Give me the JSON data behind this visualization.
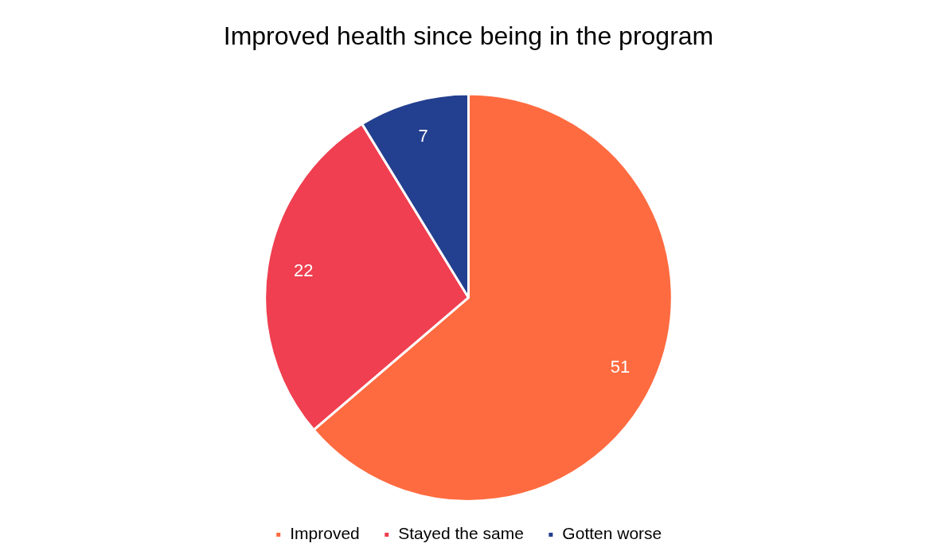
{
  "chart_data": {
    "type": "pie",
    "title": "Improved health since being in the program",
    "categories": [
      "Improved",
      "Stayed the same",
      "Gotten worse"
    ],
    "values": [
      51,
      22,
      7
    ],
    "colors": [
      "#ff6b40",
      "#ef3f50",
      "#233f8f"
    ],
    "data_labels": true,
    "legend": "bottom"
  }
}
